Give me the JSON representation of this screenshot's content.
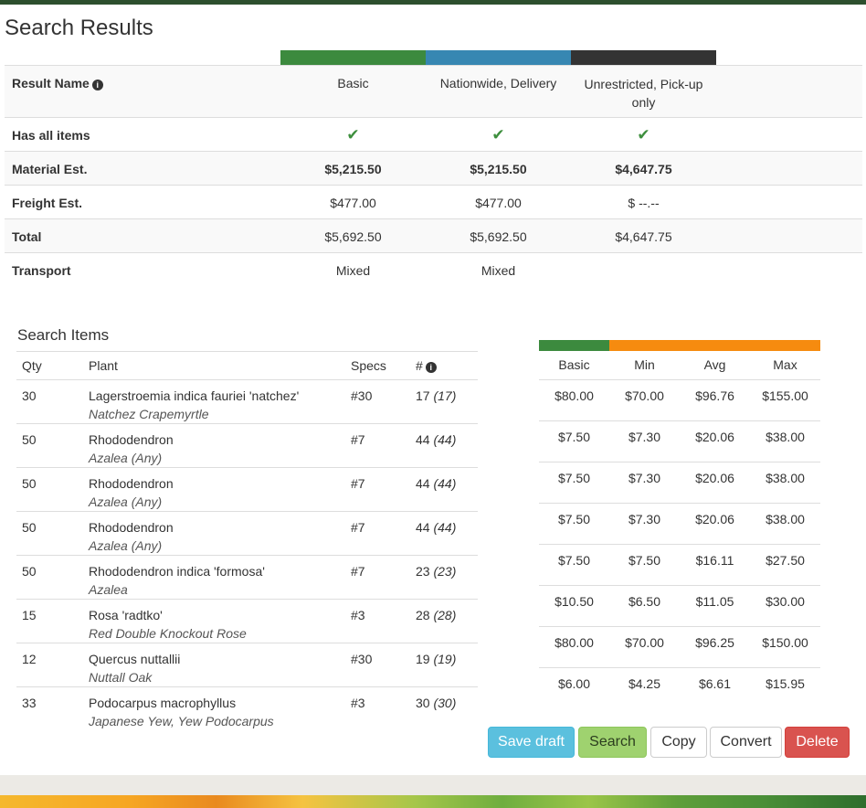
{
  "page": {
    "title": "Search Results"
  },
  "colors": {
    "green": "#3c8a3e",
    "blue": "#3787b2",
    "dark": "#333333",
    "orange": "#f68b0f"
  },
  "results": {
    "header_label": "Result Name",
    "columns": [
      "Basic",
      "Nationwide, Delivery",
      "Unrestricted, Pick-up only"
    ],
    "rows": {
      "has_all": {
        "label": "Has all items",
        "values": [
          "✔",
          "✔",
          "✔"
        ]
      },
      "material": {
        "label": "Material Est.",
        "values": [
          "$5,215.50",
          "$5,215.50",
          "$4,647.75"
        ]
      },
      "freight": {
        "label": "Freight Est.",
        "values": [
          "$477.00",
          "$477.00",
          "$ --.--"
        ]
      },
      "total": {
        "label": "Total",
        "values": [
          "$5,692.50",
          "$5,692.50",
          "$4,647.75"
        ]
      },
      "transport": {
        "label": "Transport",
        "values": [
          "Mixed",
          "Mixed",
          ""
        ]
      }
    }
  },
  "items": {
    "title": "Search Items",
    "headers": {
      "qty": "Qty",
      "plant": "Plant",
      "specs": "Specs",
      "count": "#"
    },
    "price_headers": {
      "basic": "Basic",
      "min": "Min",
      "avg": "Avg",
      "max": "Max"
    },
    "rows": [
      {
        "qty": "30",
        "plant": "Lagerstroemia indica fauriei 'natchez'",
        "common": "Natchez Crapemyrtle",
        "specs": "#30",
        "count": "17",
        "count_paren": "(17)",
        "basic": "$80.00",
        "min": "$70.00",
        "avg": "$96.76",
        "max": "$155.00"
      },
      {
        "qty": "50",
        "plant": "Rhododendron",
        "common": "Azalea (Any)",
        "specs": "#7",
        "count": "44",
        "count_paren": "(44)",
        "basic": "$7.50",
        "min": "$7.30",
        "avg": "$20.06",
        "max": "$38.00"
      },
      {
        "qty": "50",
        "plant": "Rhododendron",
        "common": "Azalea (Any)",
        "specs": "#7",
        "count": "44",
        "count_paren": "(44)",
        "basic": "$7.50",
        "min": "$7.30",
        "avg": "$20.06",
        "max": "$38.00"
      },
      {
        "qty": "50",
        "plant": "Rhododendron",
        "common": "Azalea (Any)",
        "specs": "#7",
        "count": "44",
        "count_paren": "(44)",
        "basic": "$7.50",
        "min": "$7.30",
        "avg": "$20.06",
        "max": "$38.00"
      },
      {
        "qty": "50",
        "plant": "Rhododendron indica 'formosa'",
        "common": "Azalea",
        "specs": "#7",
        "count": "23",
        "count_paren": "(23)",
        "basic": "$7.50",
        "min": "$7.50",
        "avg": "$16.11",
        "max": "$27.50"
      },
      {
        "qty": "15",
        "plant": "Rosa 'radtko'",
        "common": "Red Double Knockout Rose",
        "specs": "#3",
        "count": "28",
        "count_paren": "(28)",
        "basic": "$10.50",
        "min": "$6.50",
        "avg": "$11.05",
        "max": "$30.00"
      },
      {
        "qty": "12",
        "plant": "Quercus nuttallii",
        "common": "Nuttall Oak",
        "specs": "#30",
        "count": "19",
        "count_paren": "(19)",
        "basic": "$80.00",
        "min": "$70.00",
        "avg": "$96.25",
        "max": "$150.00"
      },
      {
        "qty": "33",
        "plant": "Podocarpus macrophyllus",
        "common": "Japanese Yew, Yew Podocarpus",
        "specs": "#3",
        "count": "30",
        "count_paren": "(30)",
        "basic": "$6.00",
        "min": "$4.25",
        "avg": "$6.61",
        "max": "$15.95"
      }
    ]
  },
  "actions": {
    "save_draft": "Save draft",
    "search": "Search",
    "copy": "Copy",
    "convert": "Convert",
    "delete": "Delete"
  }
}
